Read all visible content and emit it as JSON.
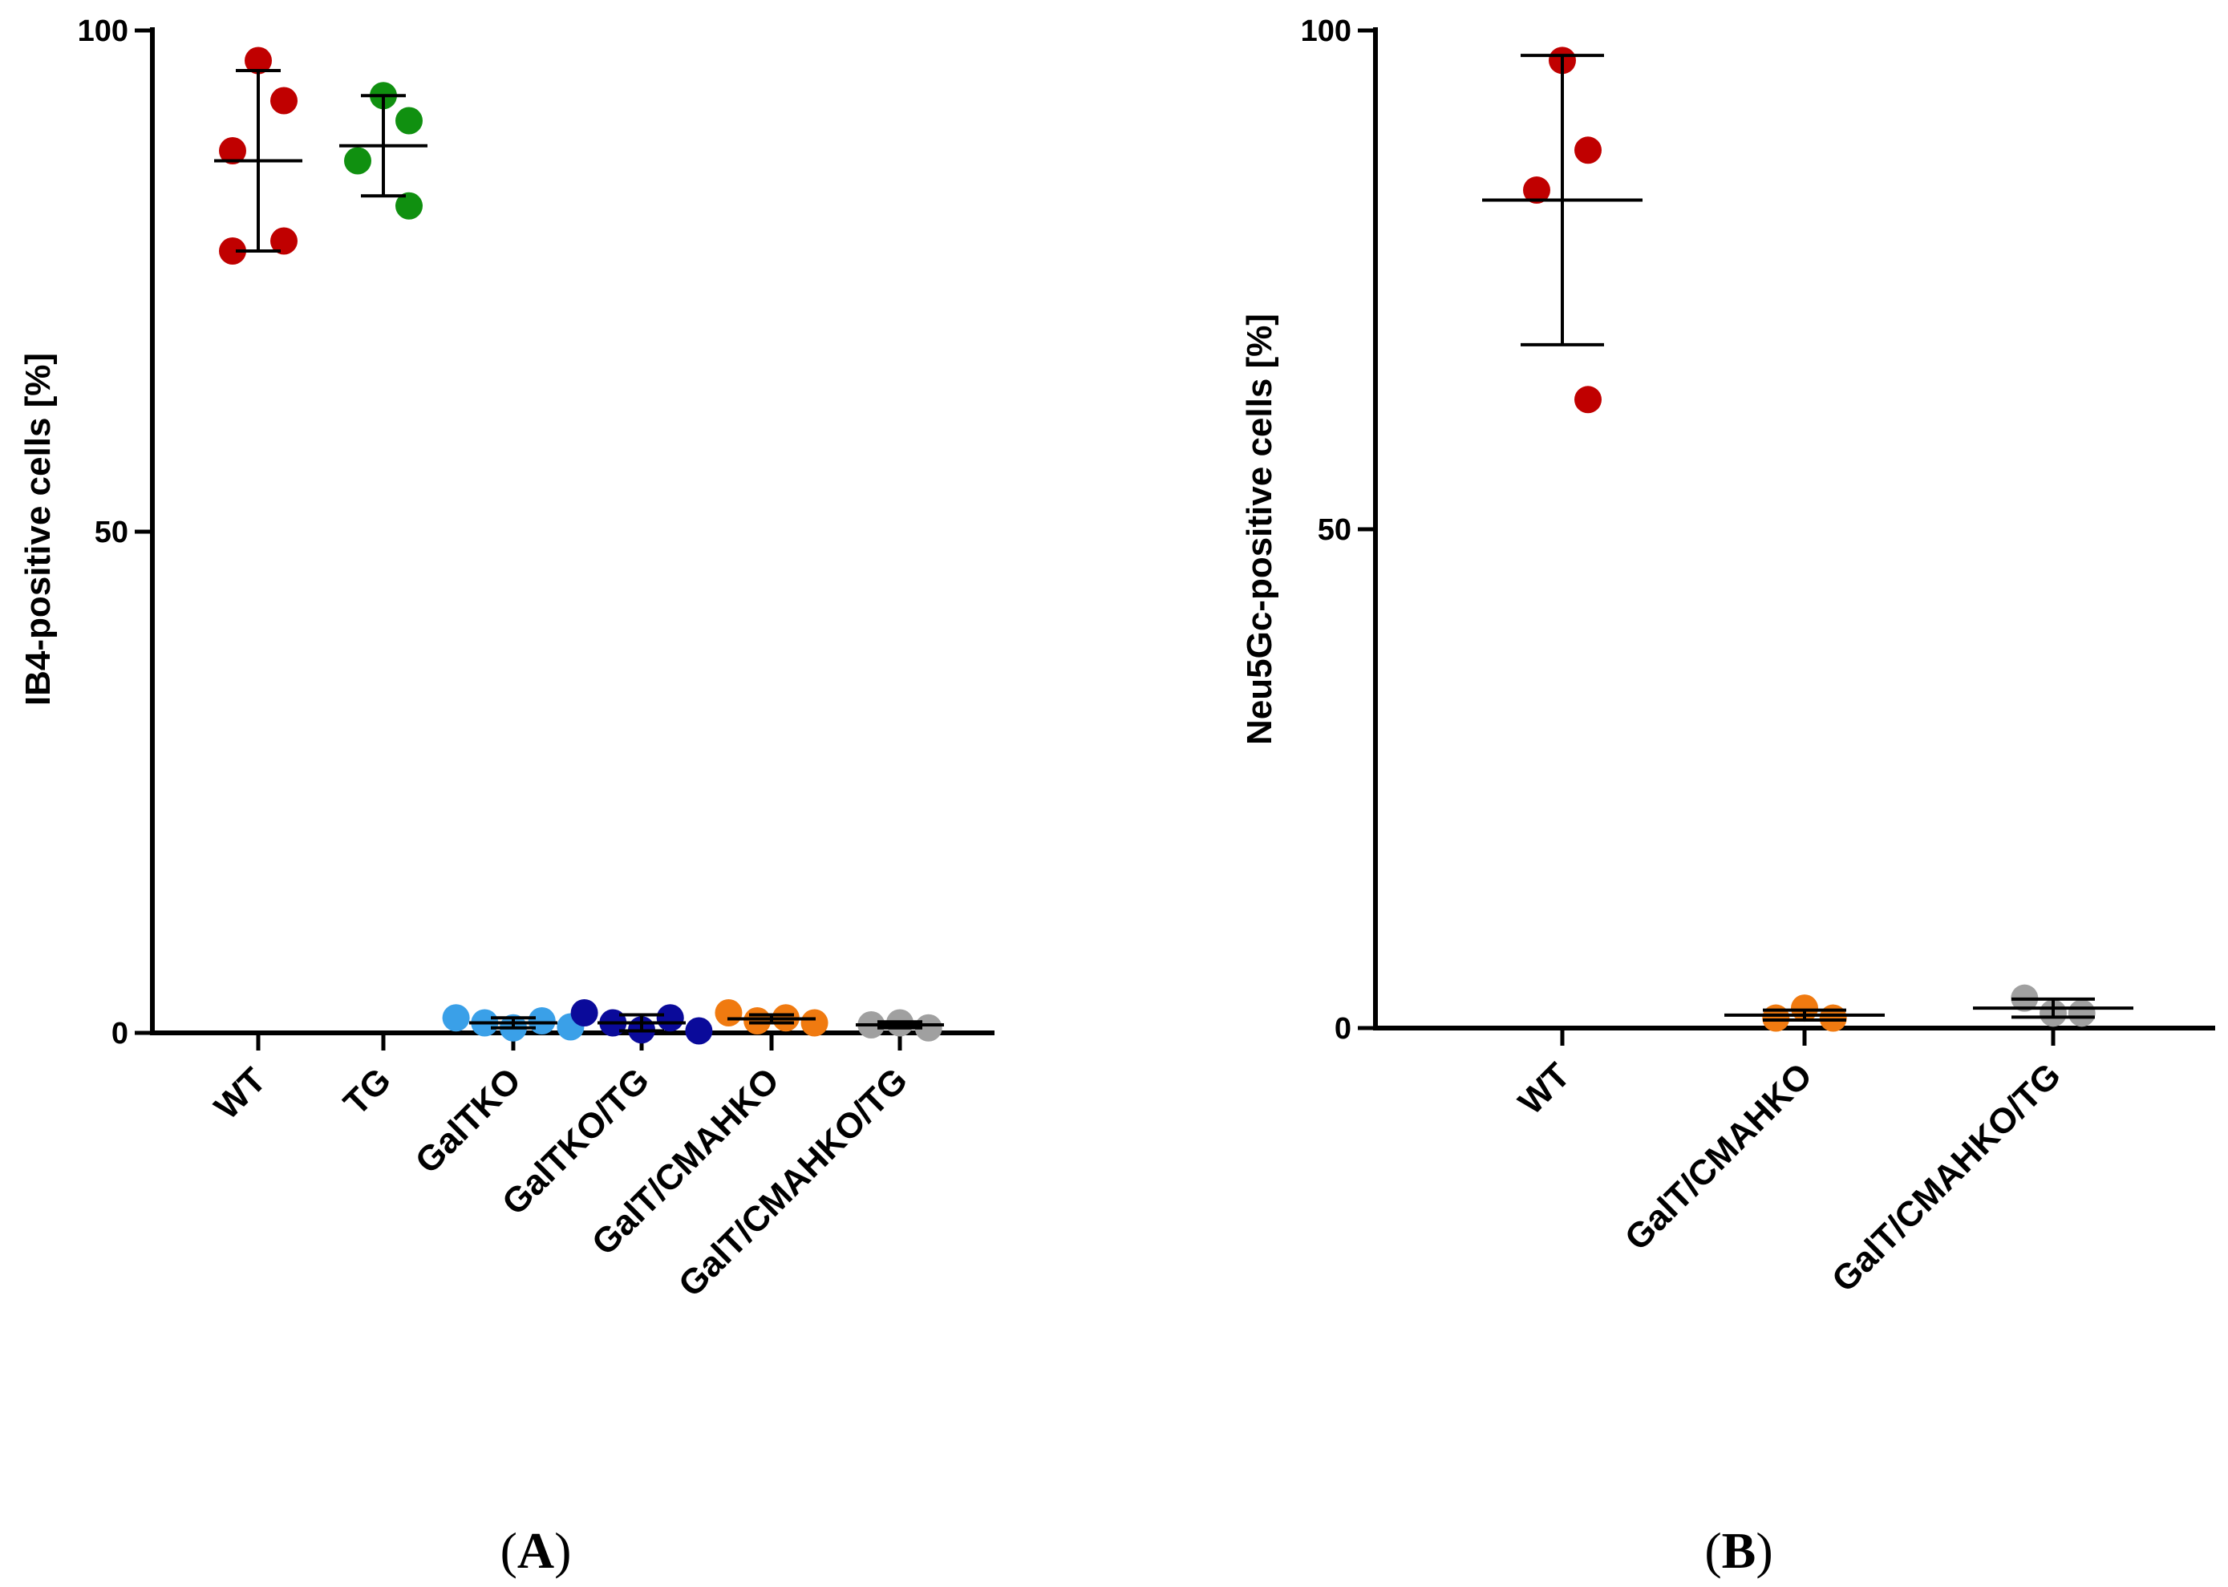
{
  "chart_data": [
    {
      "panel": "A",
      "type": "scatter",
      "ylabel": "IB4-positive cells [%]",
      "ylim": [
        0,
        100
      ],
      "yticks": [
        0,
        50,
        100
      ],
      "categories": [
        "WT",
        "TG",
        "GalTKO",
        "GalTKO/TG",
        "GalT/CMAHKO",
        "GalT/CMAHKO/TG"
      ],
      "series": [
        {
          "name": "WT",
          "color": "#c00000",
          "points": [
            97,
            93,
            88,
            79,
            78
          ],
          "mean": 87,
          "sd": 9
        },
        {
          "name": "TG",
          "color": "#109010",
          "points": [
            93.5,
            91,
            87,
            82.5
          ],
          "mean": 88.5,
          "sd": 5
        },
        {
          "name": "GalTKO",
          "color": "#3aa0e8",
          "points": [
            1.5,
            1.0,
            0.5,
            1.2,
            0.6
          ],
          "mean": 1.0,
          "sd": 0.5
        },
        {
          "name": "GalTKO/TG",
          "color": "#0a0a9a",
          "points": [
            2.0,
            1.0,
            0.3,
            1.5,
            0.2
          ],
          "mean": 1.0,
          "sd": 0.8
        },
        {
          "name": "GalT/CMAHKO",
          "color": "#f07a10",
          "points": [
            2.0,
            1.2,
            1.5,
            1.0
          ],
          "mean": 1.4,
          "sd": 0.4
        },
        {
          "name": "GalT/CMAHKO/TG",
          "color": "#a0a0a0",
          "points": [
            0.8,
            1.0,
            0.5
          ],
          "mean": 0.8,
          "sd": 0.3
        }
      ]
    },
    {
      "panel": "B",
      "type": "scatter",
      "ylabel": "Neu5Gc-positive cells [%]",
      "ylim": [
        0,
        100
      ],
      "yticks": [
        0,
        50,
        100
      ],
      "categories": [
        "WT",
        "GalT/CMAHKO",
        "GalT/CMAHKO/TG"
      ],
      "series": [
        {
          "name": "WT",
          "color": "#c00000",
          "points": [
            97,
            88,
            84,
            63
          ],
          "mean": 83,
          "sd": 14.5
        },
        {
          "name": "GalT/CMAHKO",
          "color": "#f07a10",
          "points": [
            1.0,
            2.0,
            1.0
          ],
          "mean": 1.3,
          "sd": 0.5
        },
        {
          "name": "GalT/CMAHKO/TG",
          "color": "#a0a0a0",
          "points": [
            3.0,
            1.5,
            1.5
          ],
          "mean": 2.0,
          "sd": 0.9
        }
      ]
    }
  ],
  "panel_labels": {
    "a": {
      "open": "(",
      "letter": "A",
      "close": ")"
    },
    "b": {
      "open": "(",
      "letter": "B",
      "close": ")"
    }
  }
}
